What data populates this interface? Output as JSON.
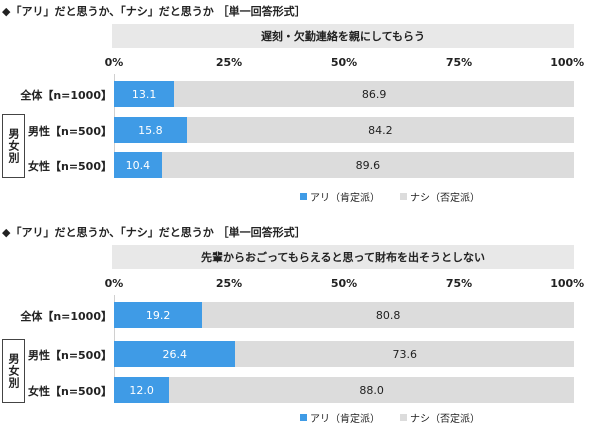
{
  "chart_data": [
    {
      "type": "bar",
      "stacked": true,
      "orientation": "horizontal",
      "title": "◆「アリ」だと思うか、「ナシ」だと思うか ［単一回答形式］",
      "subtitle": "遅刻・欠勤連絡を親にしてもらう",
      "xlim": [
        0,
        100
      ],
      "ticks": [
        "0%",
        "25%",
        "50%",
        "75%",
        "100%"
      ],
      "categories": [
        "全体【n=1000】",
        "男性【n=500】",
        "女性【n=500】"
      ],
      "group_label": "男女別",
      "series": [
        {
          "name": "アリ（肯定派）",
          "values": [
            13.1,
            15.8,
            10.4
          ],
          "labels": [
            "13.1",
            "15.8",
            "10.4"
          ],
          "color": "#3f9be6"
        },
        {
          "name": "ナシ（否定派）",
          "values": [
            86.9,
            84.2,
            89.6
          ],
          "labels": [
            "86.9",
            "84.2",
            "89.6"
          ],
          "color": "#dcdcdc"
        }
      ],
      "legend_position": "bottom"
    },
    {
      "type": "bar",
      "stacked": true,
      "orientation": "horizontal",
      "title": "◆「アリ」だと思うか、「ナシ」だと思うか ［単一回答形式］",
      "subtitle": "先輩からおごってもらえると思って財布を出そうとしない",
      "xlim": [
        0,
        100
      ],
      "ticks": [
        "0%",
        "25%",
        "50%",
        "75%",
        "100%"
      ],
      "categories": [
        "全体【n=1000】",
        "男性【n=500】",
        "女性【n=500】"
      ],
      "group_label": "男女別",
      "series": [
        {
          "name": "アリ（肯定派）",
          "values": [
            19.2,
            26.4,
            12.0
          ],
          "labels": [
            "19.2",
            "26.4",
            "12.0"
          ],
          "color": "#3f9be6"
        },
        {
          "name": "ナシ（否定派）",
          "values": [
            80.8,
            73.6,
            88.0
          ],
          "labels": [
            "80.8",
            "73.6",
            "88.0"
          ],
          "color": "#dcdcdc"
        }
      ],
      "legend_position": "bottom"
    }
  ]
}
